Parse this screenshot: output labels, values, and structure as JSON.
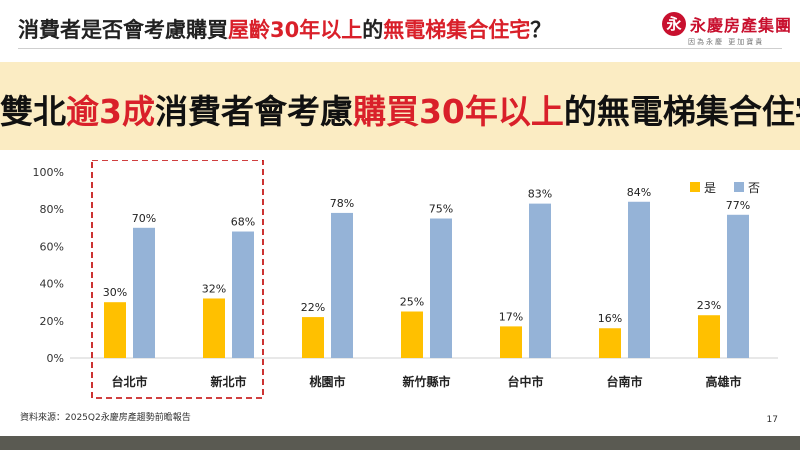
{
  "header": {
    "title_pre": "消費者是否會考慮購買",
    "title_mid": "屋齡30年以上",
    "title_post": "的",
    "title_hl2": "無電梯集合住宅",
    "title_end": "？"
  },
  "logo": {
    "name": "永慶房產集團",
    "slogan": "因為永慶 更加寶貴",
    "mark": "永"
  },
  "banner": {
    "p1": "雙北",
    "p2": "逾3成",
    "p3": "消費者會考慮",
    "p4": "購買30年以上",
    "p5": "的無電梯集合住宅"
  },
  "colors": {
    "yes": "#ffc000",
    "no": "#95b3d7",
    "accent": "#d9202a",
    "banner_bg": "#fbecc3"
  },
  "chart_data": {
    "type": "bar",
    "categories": [
      "台北市",
      "新北市",
      "桃園市",
      "新竹縣市",
      "台中市",
      "台南市",
      "高雄市"
    ],
    "series": [
      {
        "name": "是",
        "values": [
          30,
          32,
          22,
          25,
          17,
          16,
          23
        ]
      },
      {
        "name": "否",
        "values": [
          70,
          68,
          78,
          75,
          83,
          84,
          77
        ]
      }
    ],
    "ylim": [
      0,
      100
    ],
    "yticks": [
      "0%",
      "20%",
      "40%",
      "60%",
      "80%",
      "100%"
    ],
    "value_suffix": "%",
    "legend": "top-right",
    "grid": false,
    "highlight": {
      "categories": [
        "台北市",
        "新北市"
      ],
      "style": "dashed red box"
    }
  },
  "footer": {
    "source": "資料來源：2025Q2永慶房產趨勢前瞻報告",
    "page": "17"
  }
}
